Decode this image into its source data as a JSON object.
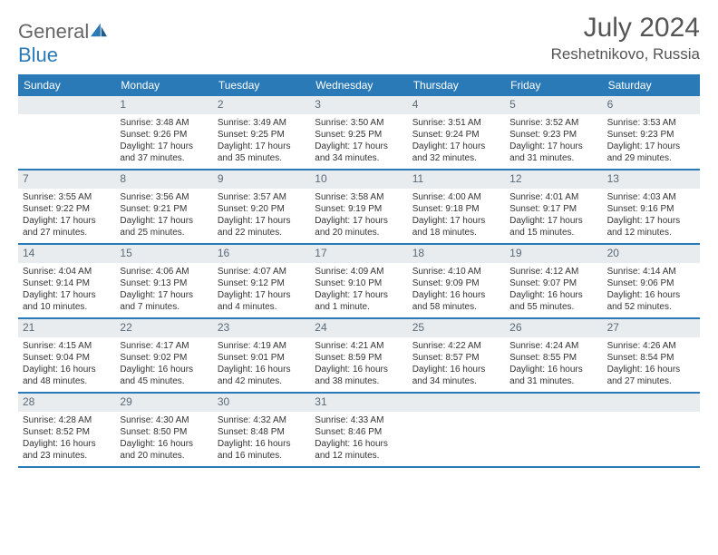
{
  "logo": {
    "brand1": "General",
    "brand2": "Blue"
  },
  "header": {
    "title": "July 2024",
    "location": "Reshetnikovo, Russia"
  },
  "colors": {
    "accent": "#2b7ab8",
    "dayhead": "#e9ecef",
    "text": "#333",
    "weekline": "#2b7ab8"
  },
  "layout": {
    "cols": 7,
    "cell_font_size": 10,
    "header_font_size": 30
  },
  "dow": [
    "Sunday",
    "Monday",
    "Tuesday",
    "Wednesday",
    "Thursday",
    "Friday",
    "Saturday"
  ],
  "weeks": [
    [
      {
        "n": "",
        "lines": []
      },
      {
        "n": "1",
        "lines": [
          "Sunrise: 3:48 AM",
          "Sunset: 9:26 PM",
          "Daylight: 17 hours",
          "and 37 minutes."
        ]
      },
      {
        "n": "2",
        "lines": [
          "Sunrise: 3:49 AM",
          "Sunset: 9:25 PM",
          "Daylight: 17 hours",
          "and 35 minutes."
        ]
      },
      {
        "n": "3",
        "lines": [
          "Sunrise: 3:50 AM",
          "Sunset: 9:25 PM",
          "Daylight: 17 hours",
          "and 34 minutes."
        ]
      },
      {
        "n": "4",
        "lines": [
          "Sunrise: 3:51 AM",
          "Sunset: 9:24 PM",
          "Daylight: 17 hours",
          "and 32 minutes."
        ]
      },
      {
        "n": "5",
        "lines": [
          "Sunrise: 3:52 AM",
          "Sunset: 9:23 PM",
          "Daylight: 17 hours",
          "and 31 minutes."
        ]
      },
      {
        "n": "6",
        "lines": [
          "Sunrise: 3:53 AM",
          "Sunset: 9:23 PM",
          "Daylight: 17 hours",
          "and 29 minutes."
        ]
      }
    ],
    [
      {
        "n": "7",
        "lines": [
          "Sunrise: 3:55 AM",
          "Sunset: 9:22 PM",
          "Daylight: 17 hours",
          "and 27 minutes."
        ]
      },
      {
        "n": "8",
        "lines": [
          "Sunrise: 3:56 AM",
          "Sunset: 9:21 PM",
          "Daylight: 17 hours",
          "and 25 minutes."
        ]
      },
      {
        "n": "9",
        "lines": [
          "Sunrise: 3:57 AM",
          "Sunset: 9:20 PM",
          "Daylight: 17 hours",
          "and 22 minutes."
        ]
      },
      {
        "n": "10",
        "lines": [
          "Sunrise: 3:58 AM",
          "Sunset: 9:19 PM",
          "Daylight: 17 hours",
          "and 20 minutes."
        ]
      },
      {
        "n": "11",
        "lines": [
          "Sunrise: 4:00 AM",
          "Sunset: 9:18 PM",
          "Daylight: 17 hours",
          "and 18 minutes."
        ]
      },
      {
        "n": "12",
        "lines": [
          "Sunrise: 4:01 AM",
          "Sunset: 9:17 PM",
          "Daylight: 17 hours",
          "and 15 minutes."
        ]
      },
      {
        "n": "13",
        "lines": [
          "Sunrise: 4:03 AM",
          "Sunset: 9:16 PM",
          "Daylight: 17 hours",
          "and 12 minutes."
        ]
      }
    ],
    [
      {
        "n": "14",
        "lines": [
          "Sunrise: 4:04 AM",
          "Sunset: 9:14 PM",
          "Daylight: 17 hours",
          "and 10 minutes."
        ]
      },
      {
        "n": "15",
        "lines": [
          "Sunrise: 4:06 AM",
          "Sunset: 9:13 PM",
          "Daylight: 17 hours",
          "and 7 minutes."
        ]
      },
      {
        "n": "16",
        "lines": [
          "Sunrise: 4:07 AM",
          "Sunset: 9:12 PM",
          "Daylight: 17 hours",
          "and 4 minutes."
        ]
      },
      {
        "n": "17",
        "lines": [
          "Sunrise: 4:09 AM",
          "Sunset: 9:10 PM",
          "Daylight: 17 hours",
          "and 1 minute."
        ]
      },
      {
        "n": "18",
        "lines": [
          "Sunrise: 4:10 AM",
          "Sunset: 9:09 PM",
          "Daylight: 16 hours",
          "and 58 minutes."
        ]
      },
      {
        "n": "19",
        "lines": [
          "Sunrise: 4:12 AM",
          "Sunset: 9:07 PM",
          "Daylight: 16 hours",
          "and 55 minutes."
        ]
      },
      {
        "n": "20",
        "lines": [
          "Sunrise: 4:14 AM",
          "Sunset: 9:06 PM",
          "Daylight: 16 hours",
          "and 52 minutes."
        ]
      }
    ],
    [
      {
        "n": "21",
        "lines": [
          "Sunrise: 4:15 AM",
          "Sunset: 9:04 PM",
          "Daylight: 16 hours",
          "and 48 minutes."
        ]
      },
      {
        "n": "22",
        "lines": [
          "Sunrise: 4:17 AM",
          "Sunset: 9:02 PM",
          "Daylight: 16 hours",
          "and 45 minutes."
        ]
      },
      {
        "n": "23",
        "lines": [
          "Sunrise: 4:19 AM",
          "Sunset: 9:01 PM",
          "Daylight: 16 hours",
          "and 42 minutes."
        ]
      },
      {
        "n": "24",
        "lines": [
          "Sunrise: 4:21 AM",
          "Sunset: 8:59 PM",
          "Daylight: 16 hours",
          "and 38 minutes."
        ]
      },
      {
        "n": "25",
        "lines": [
          "Sunrise: 4:22 AM",
          "Sunset: 8:57 PM",
          "Daylight: 16 hours",
          "and 34 minutes."
        ]
      },
      {
        "n": "26",
        "lines": [
          "Sunrise: 4:24 AM",
          "Sunset: 8:55 PM",
          "Daylight: 16 hours",
          "and 31 minutes."
        ]
      },
      {
        "n": "27",
        "lines": [
          "Sunrise: 4:26 AM",
          "Sunset: 8:54 PM",
          "Daylight: 16 hours",
          "and 27 minutes."
        ]
      }
    ],
    [
      {
        "n": "28",
        "lines": [
          "Sunrise: 4:28 AM",
          "Sunset: 8:52 PM",
          "Daylight: 16 hours",
          "and 23 minutes."
        ]
      },
      {
        "n": "29",
        "lines": [
          "Sunrise: 4:30 AM",
          "Sunset: 8:50 PM",
          "Daylight: 16 hours",
          "and 20 minutes."
        ]
      },
      {
        "n": "30",
        "lines": [
          "Sunrise: 4:32 AM",
          "Sunset: 8:48 PM",
          "Daylight: 16 hours",
          "and 16 minutes."
        ]
      },
      {
        "n": "31",
        "lines": [
          "Sunrise: 4:33 AM",
          "Sunset: 8:46 PM",
          "Daylight: 16 hours",
          "and 12 minutes."
        ]
      },
      {
        "n": "",
        "lines": []
      },
      {
        "n": "",
        "lines": []
      },
      {
        "n": "",
        "lines": []
      }
    ]
  ]
}
